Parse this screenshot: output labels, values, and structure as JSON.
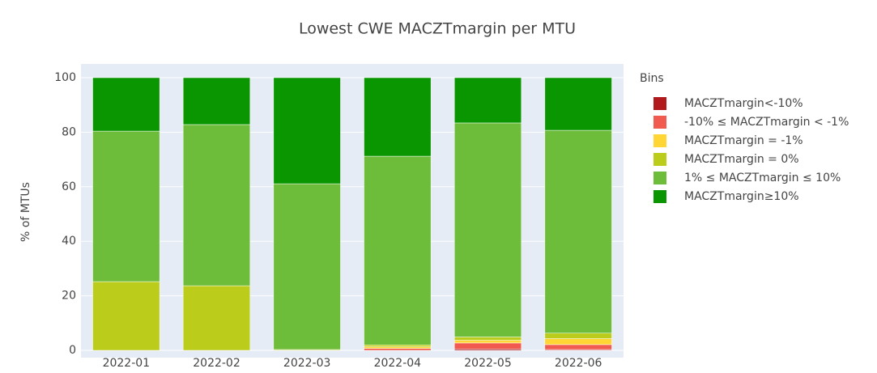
{
  "chart_data": {
    "type": "stacked_bar",
    "title": "Lowest CWE MACZTmargin per MTU",
    "y_label": "% of MTUs",
    "legend_title": "Bins",
    "legend_position": "right",
    "categories": [
      "2022-01",
      "2022-02",
      "2022-03",
      "2022-04",
      "2022-05",
      "2022-06"
    ],
    "series": [
      {
        "name": "MACZTmargin<-10%",
        "color": "#b2191c",
        "values": [
          0,
          0,
          0,
          0,
          0.5,
          0.3
        ]
      },
      {
        "name": "-10% ≤ MACZTmargin < -1%",
        "color": "#f05a4f",
        "values": [
          0,
          0,
          0,
          0.7,
          2.2,
          1.8
        ]
      },
      {
        "name": "MACZTmargin = -1%",
        "color": "#ffd633",
        "values": [
          0,
          0,
          0,
          0.6,
          1,
          2.2
        ]
      },
      {
        "name": "MACZTmargin = 0%",
        "color": "#bccc1a",
        "values": [
          25.2,
          23.7,
          0.3,
          0.7,
          1.2,
          2
        ]
      },
      {
        "name": "1% ≤ MACZTmargin ≤ 10%",
        "color": "#6dbd3b",
        "values": [
          55.2,
          59.1,
          60.8,
          69.2,
          78.5,
          74.4
        ]
      },
      {
        "name": "MACZTmargin≥10%",
        "color": "#0a9600",
        "values": [
          19.6,
          17.2,
          38.9,
          28.8,
          16.6,
          19.3
        ]
      }
    ],
    "ylim": [
      0,
      100
    ],
    "yticks": [
      0,
      20,
      40,
      60,
      80,
      100
    ],
    "grid": true
  }
}
